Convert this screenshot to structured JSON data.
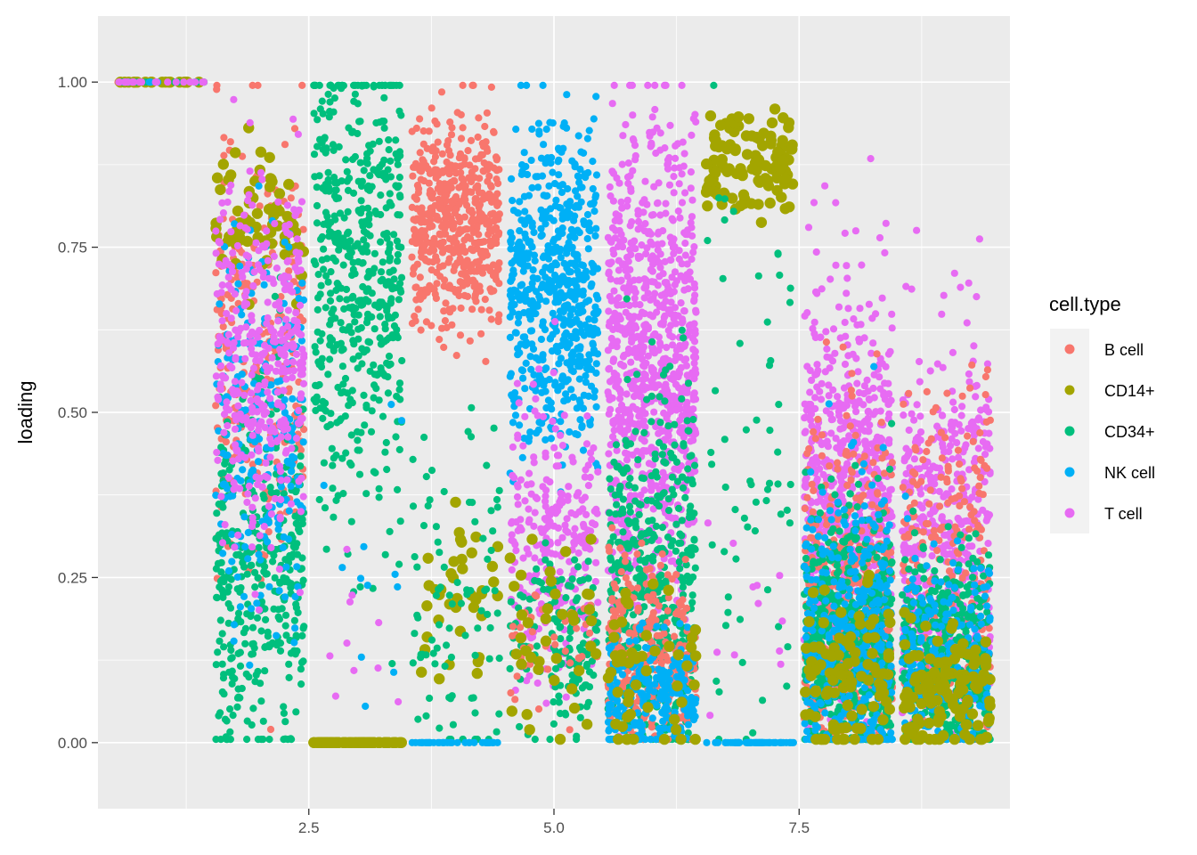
{
  "chart_data": {
    "type": "scatter",
    "title": "",
    "xlabel": "",
    "ylabel": "loading",
    "xlim": [
      0.35,
      9.65
    ],
    "ylim": [
      -0.1,
      1.1
    ],
    "x_ticks": [
      {
        "value": 2.5,
        "label": "2.5"
      },
      {
        "value": 5.0,
        "label": "5.0"
      },
      {
        "value": 7.5,
        "label": "7.5"
      }
    ],
    "y_ticks": [
      {
        "value": 0.0,
        "label": "0.00"
      },
      {
        "value": 0.25,
        "label": "0.25"
      },
      {
        "value": 0.5,
        "label": "0.50"
      },
      {
        "value": 0.75,
        "label": "0.75"
      },
      {
        "value": 1.0,
        "label": "1.00"
      }
    ],
    "grid": true,
    "jitter_width": 0.45,
    "legend": {
      "title": "cell.type",
      "position": "right",
      "entries": [
        {
          "label": "B cell",
          "color": "#F8766D"
        },
        {
          "label": "CD14+",
          "color": "#A3A500"
        },
        {
          "label": "CD34+",
          "color": "#00BF7D"
        },
        {
          "label": "NK cell",
          "color": "#00B0F6"
        },
        {
          "label": "T cell",
          "color": "#E76BF3"
        }
      ]
    },
    "series_summary": [
      {
        "x": 1,
        "groups": [
          {
            "type": "B cell",
            "n": 20,
            "center": 1.0,
            "spread": 0.0
          },
          {
            "type": "CD14+",
            "n": 20,
            "center": 1.0,
            "spread": 0.0
          },
          {
            "type": "CD34+",
            "n": 10,
            "center": 1.0,
            "spread": 0.0
          },
          {
            "type": "NK cell",
            "n": 10,
            "center": 1.0,
            "spread": 0.0
          },
          {
            "type": "T cell",
            "n": 20,
            "center": 1.0,
            "spread": 0.0
          }
        ]
      },
      {
        "x": 2,
        "groups": [
          {
            "type": "B cell",
            "n": 260,
            "center": 0.6,
            "spread": 0.16
          },
          {
            "type": "CD14+",
            "n": 70,
            "center": 0.8,
            "spread": 0.05
          },
          {
            "type": "CD34+",
            "n": 380,
            "center": 0.26,
            "spread": 0.14
          },
          {
            "type": "NK cell",
            "n": 220,
            "center": 0.48,
            "spread": 0.16
          },
          {
            "type": "T cell",
            "n": 380,
            "center": 0.58,
            "spread": 0.14
          }
        ]
      },
      {
        "x": 3,
        "groups": [
          {
            "type": "CD34+",
            "n": 520,
            "center": 0.72,
            "spread": 0.18
          },
          {
            "type": "CD14+",
            "n": 100,
            "center": 0.0,
            "spread": 0.0
          },
          {
            "type": "NK cell",
            "n": 12,
            "center": 0.25,
            "spread": 0.12
          },
          {
            "type": "T cell",
            "n": 10,
            "center": 0.15,
            "spread": 0.08
          }
        ]
      },
      {
        "x": 4,
        "groups": [
          {
            "type": "B cell",
            "n": 520,
            "center": 0.79,
            "spread": 0.08
          },
          {
            "type": "CD14+",
            "n": 40,
            "center": 0.22,
            "spread": 0.07
          },
          {
            "type": "CD34+",
            "n": 90,
            "center": 0.22,
            "spread": 0.12
          },
          {
            "type": "NK cell",
            "n": 40,
            "center": 0.0,
            "spread": 0.0
          }
        ]
      },
      {
        "x": 5,
        "groups": [
          {
            "type": "NK cell",
            "n": 620,
            "center": 0.68,
            "spread": 0.12
          },
          {
            "type": "T cell",
            "n": 280,
            "center": 0.3,
            "spread": 0.1
          },
          {
            "type": "CD34+",
            "n": 150,
            "center": 0.15,
            "spread": 0.07
          },
          {
            "type": "B cell",
            "n": 40,
            "center": 0.15,
            "spread": 0.05
          },
          {
            "type": "CD14+",
            "n": 40,
            "center": 0.16,
            "spread": 0.07
          }
        ]
      },
      {
        "x": 6,
        "groups": [
          {
            "type": "T cell",
            "n": 900,
            "center": 0.58,
            "spread": 0.18
          },
          {
            "type": "CD34+",
            "n": 500,
            "center": 0.22,
            "spread": 0.14
          },
          {
            "type": "B cell",
            "n": 260,
            "center": 0.14,
            "spread": 0.07
          },
          {
            "type": "NK cell",
            "n": 250,
            "center": 0.07,
            "spread": 0.05
          },
          {
            "type": "CD14+",
            "n": 50,
            "center": 0.12,
            "spread": 0.08
          }
        ]
      },
      {
        "x": 7,
        "groups": [
          {
            "type": "CD14+",
            "n": 120,
            "center": 0.88,
            "spread": 0.04
          },
          {
            "type": "CD34+",
            "n": 60,
            "center": 0.4,
            "spread": 0.24
          },
          {
            "type": "NK cell",
            "n": 60,
            "center": 0.0,
            "spread": 0.0
          },
          {
            "type": "T cell",
            "n": 12,
            "center": 0.2,
            "spread": 0.08
          }
        ]
      },
      {
        "x": 8,
        "groups": [
          {
            "type": "T cell",
            "n": 700,
            "center": 0.36,
            "spread": 0.17
          },
          {
            "type": "B cell",
            "n": 500,
            "center": 0.2,
            "spread": 0.13
          },
          {
            "type": "CD34+",
            "n": 600,
            "center": 0.14,
            "spread": 0.11
          },
          {
            "type": "NK cell",
            "n": 400,
            "center": 0.16,
            "spread": 0.12
          },
          {
            "type": "CD14+",
            "n": 100,
            "center": 0.1,
            "spread": 0.07
          }
        ]
      },
      {
        "x": 9,
        "groups": [
          {
            "type": "T cell",
            "n": 500,
            "center": 0.3,
            "spread": 0.15
          },
          {
            "type": "B cell",
            "n": 200,
            "center": 0.28,
            "spread": 0.14
          },
          {
            "type": "CD34+",
            "n": 450,
            "center": 0.12,
            "spread": 0.08
          },
          {
            "type": "NK cell",
            "n": 200,
            "center": 0.12,
            "spread": 0.08
          },
          {
            "type": "CD14+",
            "n": 120,
            "center": 0.08,
            "spread": 0.05
          }
        ]
      }
    ]
  }
}
